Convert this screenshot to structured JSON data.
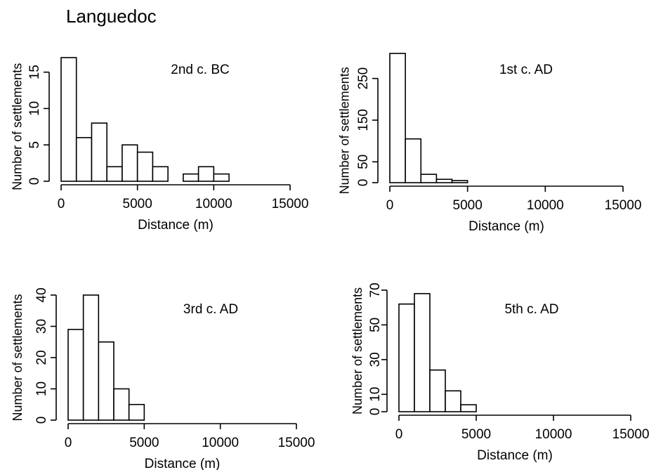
{
  "page": {
    "title": "Languedoc"
  },
  "chart_data": [
    {
      "type": "bar",
      "title": "2nd c. BC",
      "xlabel": "Distance (m)",
      "ylabel": "Number of settlements",
      "bin_width": 1000,
      "x_range": [
        0,
        15000
      ],
      "ylim": [
        0,
        17
      ],
      "xticks": [
        0,
        5000,
        10000,
        15000
      ],
      "yticks": [
        0,
        5,
        10,
        15
      ],
      "values": [
        17,
        6,
        8,
        2,
        5,
        4,
        2,
        0,
        1,
        2,
        1,
        0,
        0,
        0,
        0
      ],
      "grid": false
    },
    {
      "type": "bar",
      "title": "1st c. AD",
      "xlabel": "Distance (m)",
      "ylabel": "Number of  settlements",
      "bin_width": 1000,
      "x_range": [
        0,
        15000
      ],
      "ylim": [
        0,
        300
      ],
      "xticks": [
        0,
        5000,
        10000,
        15000
      ],
      "yticks": [
        0,
        50,
        150,
        250
      ],
      "values": [
        310,
        105,
        20,
        8,
        5,
        0,
        0,
        0,
        0,
        0,
        0,
        0,
        0,
        0,
        0
      ],
      "grid": false
    },
    {
      "type": "bar",
      "title": "3rd c. AD",
      "xlabel": "Distance (m)",
      "ylabel": "Number of settlements",
      "bin_width": 1000,
      "x_range": [
        0,
        15000
      ],
      "ylim": [
        0,
        40
      ],
      "xticks": [
        0,
        5000,
        10000,
        15000
      ],
      "yticks": [
        0,
        10,
        20,
        30,
        40
      ],
      "values": [
        29,
        40,
        25,
        10,
        5,
        0,
        0,
        0,
        0,
        0,
        0,
        0,
        0,
        0,
        0
      ],
      "grid": false
    },
    {
      "type": "bar",
      "title": "5th c. AD",
      "xlabel": "Distance (m)",
      "ylabel": "Number of  settlements",
      "bin_width": 1000,
      "x_range": [
        0,
        15000
      ],
      "ylim": [
        0,
        70
      ],
      "xticks": [
        0,
        5000,
        10000,
        15000
      ],
      "yticks": [
        0,
        10,
        30,
        50,
        70
      ],
      "values": [
        62,
        68,
        24,
        12,
        4,
        0,
        0,
        0,
        0,
        0,
        0,
        0,
        0,
        0,
        0
      ],
      "grid": false
    }
  ]
}
